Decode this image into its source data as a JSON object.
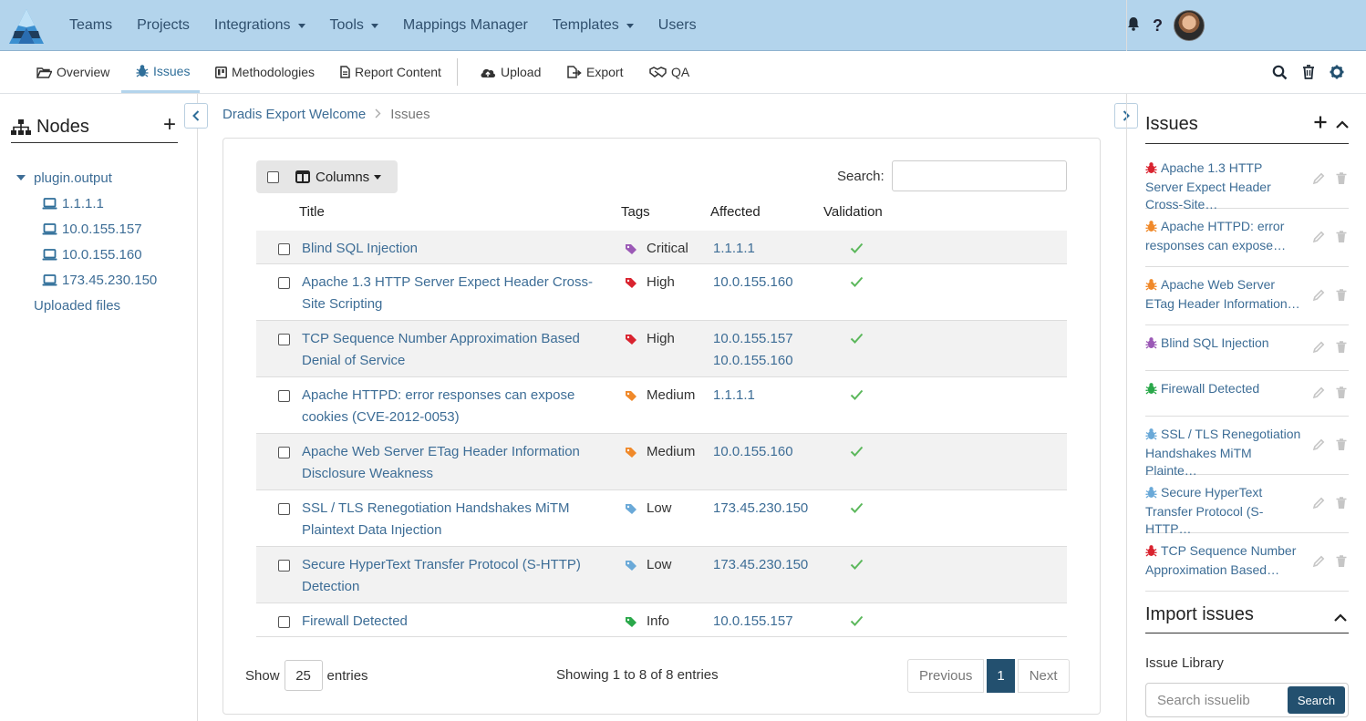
{
  "topnav": {
    "items": [
      {
        "label": "Teams",
        "dropdown": false
      },
      {
        "label": "Projects",
        "dropdown": false
      },
      {
        "label": "Integrations",
        "dropdown": true
      },
      {
        "label": "Tools",
        "dropdown": true
      },
      {
        "label": "Mappings Manager",
        "dropdown": false
      },
      {
        "label": "Templates",
        "dropdown": true
      },
      {
        "label": "Users",
        "dropdown": false
      }
    ],
    "help": "?"
  },
  "subnav": {
    "overview": "Overview",
    "issues": "Issues",
    "methodologies": "Methodologies",
    "report_content": "Report Content",
    "upload": "Upload",
    "export": "Export",
    "qa": "QA"
  },
  "nodes": {
    "title": "Nodes",
    "plus": "+",
    "root": "plugin.output",
    "children": [
      "1.1.1.1",
      "10.0.155.157",
      "10.0.155.160",
      "173.45.230.150"
    ],
    "uploaded": "Uploaded files"
  },
  "breadcrumb": {
    "project": "Dradis Export Welcome",
    "current": "Issues"
  },
  "table": {
    "columns_button": "Columns",
    "search_label": "Search:",
    "search_value": "",
    "headers": {
      "title": "Title",
      "tags": "Tags",
      "affected": "Affected",
      "validation": "Validation"
    },
    "rows": [
      {
        "title": "Blind SQL Injection",
        "tag": "Critical",
        "tag_color": "#9b59b6",
        "affected": "1.1.1.1"
      },
      {
        "title": "Apache 1.3 HTTP Server Expect Header Cross-Site Scripting",
        "tag": "High",
        "tag_color": "#d9232f",
        "affected": "10.0.155.160"
      },
      {
        "title": "TCP Sequence Number Approximation Based Denial of Service",
        "tag": "High",
        "tag_color": "#d9232f",
        "affected": "10.0.155.157\n10.0.155.160"
      },
      {
        "title": "Apache HTTPD: error responses can expose cookies (CVE-2012-0053)",
        "tag": "Medium",
        "tag_color": "#f0892a",
        "affected": "1.1.1.1"
      },
      {
        "title": "Apache Web Server ETag Header Information Disclosure Weakness",
        "tag": "Medium",
        "tag_color": "#f0892a",
        "affected": "10.0.155.160"
      },
      {
        "title": "SSL / TLS Renegotiation Handshakes MiTM Plaintext Data Injection",
        "tag": "Low",
        "tag_color": "#6aa9d8",
        "affected": "173.45.230.150"
      },
      {
        "title": "Secure HyperText Transfer Protocol (S-HTTP) Detection",
        "tag": "Low",
        "tag_color": "#6aa9d8",
        "affected": "173.45.230.150"
      },
      {
        "title": "Firewall Detected",
        "tag": "Info",
        "tag_color": "#2aa84a",
        "affected": "10.0.155.157"
      }
    ],
    "show_label": "Show",
    "page_length": "25",
    "entries_label": "entries",
    "info": "Showing 1 to 8 of 8 entries",
    "previous": "Previous",
    "page": "1",
    "next": "Next"
  },
  "issues_panel": {
    "title": "Issues",
    "items": [
      {
        "text": "Apache 1.3 HTTP Server Expect Header Cross-Site…",
        "color": "#d9232f"
      },
      {
        "text": "Apache HTTPD: error responses can expose…",
        "color": "#f0892a"
      },
      {
        "text": "Apache Web Server ETag Header Information…",
        "color": "#f0892a"
      },
      {
        "text": "Blind SQL Injection",
        "color": "#9b59b6"
      },
      {
        "text": "Firewall Detected",
        "color": "#2aa84a"
      },
      {
        "text": "SSL / TLS Renegotiation Handshakes MiTM Plainte…",
        "color": "#6aa9d8"
      },
      {
        "text": "Secure HyperText Transfer Protocol (S-HTTP…",
        "color": "#6aa9d8"
      },
      {
        "text": "TCP Sequence Number Approximation Based…",
        "color": "#d9232f"
      }
    ],
    "import_title": "Import issues",
    "library_label": "Issue Library",
    "library_placeholder": "Search issuelib",
    "search_button": "Search"
  },
  "colors": {
    "topnav_bg": "#b3d4ec",
    "primary": "#23506f",
    "link": "#3d6d96",
    "check": "#5cb85c"
  }
}
